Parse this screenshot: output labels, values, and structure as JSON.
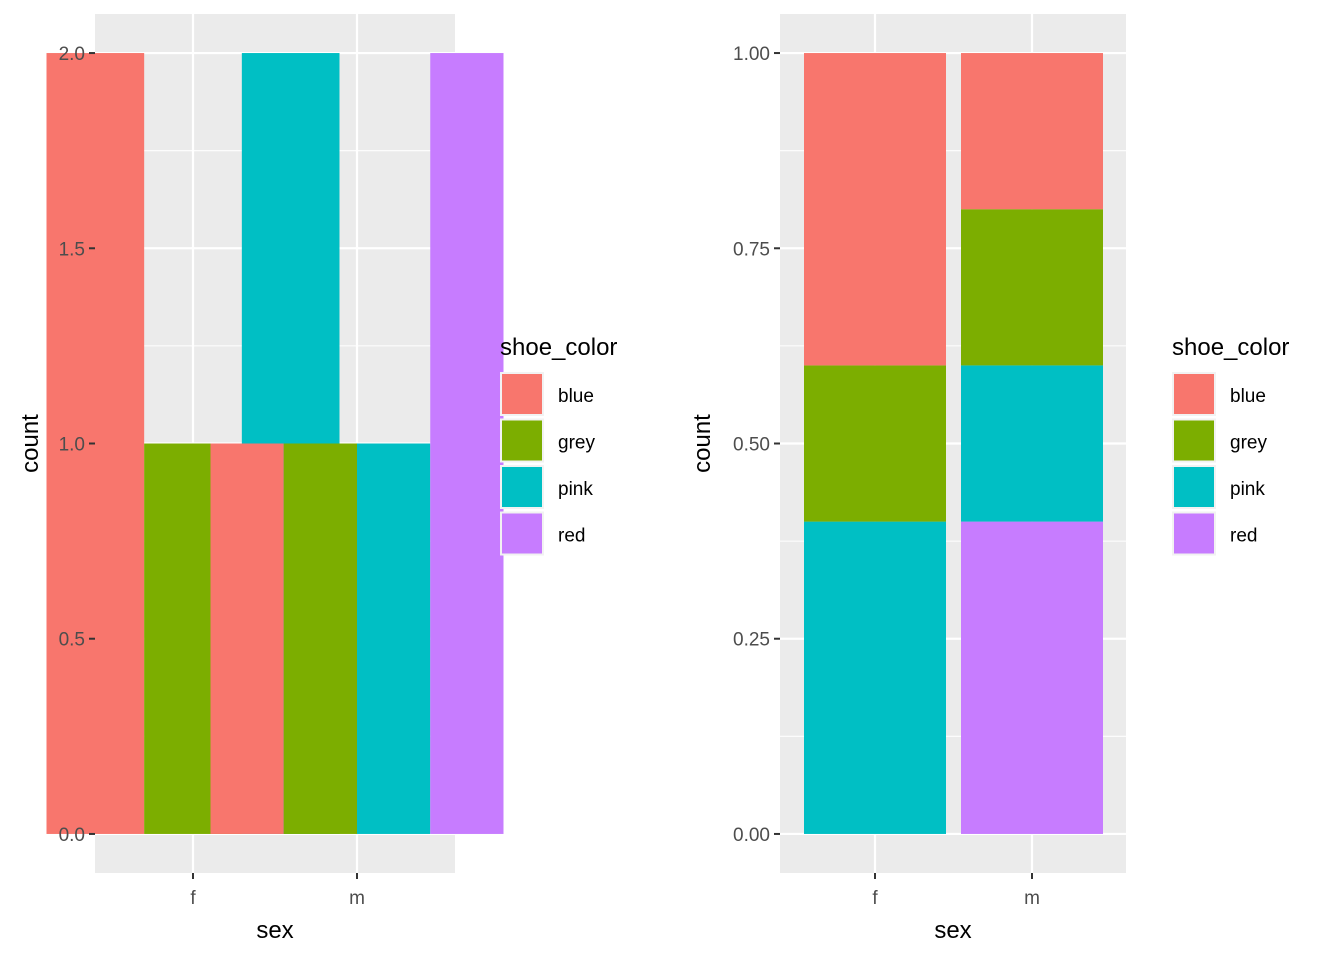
{
  "colors": {
    "panel_bg": "#EBEBEB",
    "grid": "#FFFFFF",
    "tick_text": "#4D4D4D",
    "tick_mark": "#333333",
    "text": "#000000"
  },
  "legend": {
    "title": "shoe_color",
    "entries": [
      {
        "label": "blue",
        "color": "#F8766D"
      },
      {
        "label": "grey",
        "color": "#7CAE00"
      },
      {
        "label": "pink",
        "color": "#00BFC4"
      },
      {
        "label": "red",
        "color": "#C77CFF"
      }
    ]
  },
  "chart_data": [
    {
      "type": "bar",
      "position": "dodge",
      "xlabel": "sex",
      "ylabel": "count",
      "categories": [
        "f",
        "m"
      ],
      "ylim": [
        -0.1,
        2.1
      ],
      "yticks": [
        0.0,
        0.5,
        1.0,
        1.5,
        2.0
      ],
      "ytick_labels": [
        "0.0",
        "0.5",
        "1.0",
        "1.5",
        "2.0"
      ],
      "grid": true,
      "legend_position": "right",
      "series": [
        {
          "name": "blue",
          "values": [
            2,
            1
          ]
        },
        {
          "name": "grey",
          "values": [
            1,
            1
          ]
        },
        {
          "name": "pink",
          "values": [
            2,
            1
          ]
        },
        {
          "name": "red",
          "values": [
            0,
            2
          ]
        }
      ]
    },
    {
      "type": "bar",
      "position": "fill",
      "xlabel": "sex",
      "ylabel": "count",
      "categories": [
        "f",
        "m"
      ],
      "ylim": [
        -0.05,
        1.05
      ],
      "yticks": [
        0.0,
        0.25,
        0.5,
        0.75,
        1.0
      ],
      "ytick_labels": [
        "0.00",
        "0.25",
        "0.50",
        "0.75",
        "1.00"
      ],
      "grid": true,
      "legend_position": "right",
      "series": [
        {
          "name": "blue",
          "values": [
            0.4,
            0.2
          ]
        },
        {
          "name": "grey",
          "values": [
            0.2,
            0.2
          ]
        },
        {
          "name": "pink",
          "values": [
            0.4,
            0.2
          ]
        },
        {
          "name": "red",
          "values": [
            0.0,
            0.4
          ]
        }
      ]
    }
  ]
}
